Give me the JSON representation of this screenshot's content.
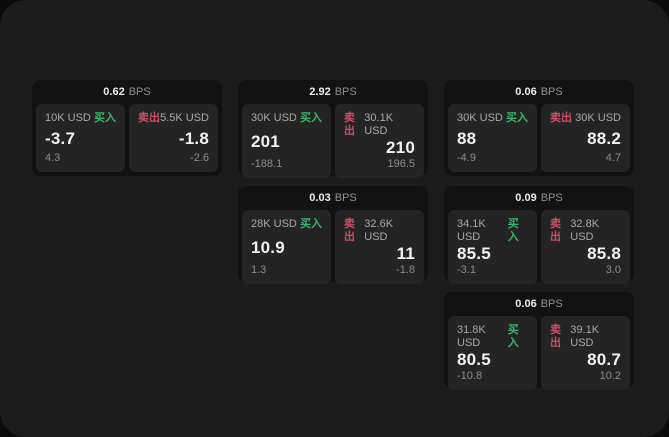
{
  "labels": {
    "bps_unit": "BPS",
    "buy": "买入",
    "sell": "卖出"
  },
  "colors": {
    "buy": "#3bb46c",
    "sell": "#ca4f63",
    "backdrop": "#0b0b0c",
    "panel": "#1c1c1d",
    "card": "#121212",
    "cell": "#242425"
  },
  "cards": [
    {
      "row": 1,
      "col": 1,
      "bps": "0.62",
      "buy": {
        "amount": "10K USD",
        "value": "-3.7",
        "delta": "4.3"
      },
      "sell": {
        "amount": "5.5K USD",
        "value": "-1.8",
        "delta": "-2.6"
      }
    },
    {
      "row": 1,
      "col": 2,
      "bps": "2.92",
      "buy": {
        "amount": "30K USD",
        "value": "201",
        "delta": "-188.1"
      },
      "sell": {
        "amount": "30.1K USD",
        "value": "210",
        "delta": "196.5"
      }
    },
    {
      "row": 1,
      "col": 3,
      "bps": "0.06",
      "buy": {
        "amount": "30K USD",
        "value": "88",
        "delta": "-4.9"
      },
      "sell": {
        "amount": "30K USD",
        "value": "88.2",
        "delta": "4.7"
      }
    },
    {
      "row": 2,
      "col": 2,
      "bps": "0.03",
      "buy": {
        "amount": "28K USD",
        "value": "10.9",
        "delta": "1.3"
      },
      "sell": {
        "amount": "32.6K USD",
        "value": "11",
        "delta": "-1.8"
      }
    },
    {
      "row": 2,
      "col": 3,
      "bps": "0.09",
      "buy": {
        "amount": "34.1K USD",
        "value": "85.5",
        "delta": "-3.1"
      },
      "sell": {
        "amount": "32.8K USD",
        "value": "85.8",
        "delta": "3.0"
      }
    },
    {
      "row": 3,
      "col": 3,
      "bps": "0.06",
      "buy": {
        "amount": "31.8K USD",
        "value": "80.5",
        "delta": "-10.8"
      },
      "sell": {
        "amount": "39.1K USD",
        "value": "80.7",
        "delta": "10.2"
      }
    }
  ]
}
